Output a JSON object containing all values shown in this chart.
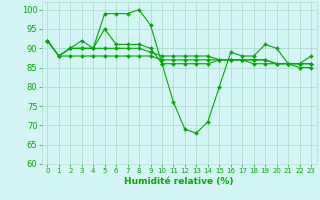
{
  "title": "",
  "xlabel": "Humidité relative (%)",
  "ylabel": "",
  "background_color": "#d4f5f5",
  "grid_color": "#b0ddd0",
  "line_color": "#00aa00",
  "xlim": [
    -0.5,
    23.5
  ],
  "ylim": [
    60,
    102
  ],
  "yticks": [
    60,
    65,
    70,
    75,
    80,
    85,
    90,
    95,
    100
  ],
  "xticks": [
    0,
    1,
    2,
    3,
    4,
    5,
    6,
    7,
    8,
    9,
    10,
    11,
    12,
    13,
    14,
    15,
    16,
    17,
    18,
    19,
    20,
    21,
    22,
    23
  ],
  "series": [
    [
      92,
      88,
      90,
      92,
      90,
      99,
      99,
      99,
      100,
      96,
      86,
      76,
      69,
      68,
      71,
      80,
      89,
      88,
      88,
      91,
      90,
      86,
      86,
      88
    ],
    [
      92,
      88,
      90,
      90,
      90,
      95,
      91,
      91,
      91,
      90,
      86,
      86,
      86,
      86,
      86,
      87,
      87,
      87,
      87,
      87,
      86,
      86,
      86,
      86
    ],
    [
      92,
      88,
      90,
      90,
      90,
      90,
      90,
      90,
      90,
      89,
      88,
      88,
      88,
      88,
      88,
      87,
      87,
      87,
      87,
      87,
      86,
      86,
      86,
      86
    ],
    [
      92,
      88,
      88,
      88,
      88,
      88,
      88,
      88,
      88,
      88,
      87,
      87,
      87,
      87,
      87,
      87,
      87,
      87,
      86,
      86,
      86,
      86,
      85,
      85
    ]
  ]
}
